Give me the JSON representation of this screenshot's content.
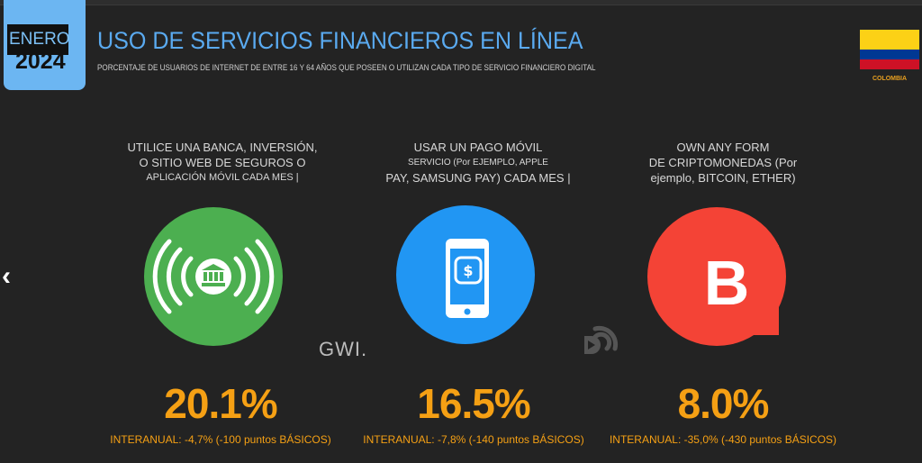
{
  "header": {
    "month": "ENERO",
    "year": "2024",
    "title": "USO DE SERVICIOS FINANCIEROS EN LÍNEA",
    "subtitle": "PORCENTAJE DE USUARIOS DE INTERNET DE ENTRE 16 Y 64 AÑOS QUE POSEEN O UTILIZAN CADA TIPO DE SERVICIO FINANCIERO DIGITAL",
    "country": "COLOMBIA",
    "flag_colors": [
      "#fcd116",
      "#003893",
      "#ce1126"
    ]
  },
  "nav": {
    "prev_icon": "chevron-left-icon"
  },
  "watermarks": {
    "gwi": "GWI."
  },
  "metrics": [
    {
      "label_lines": [
        "UTILICE UNA BANCA, INVERSIÓN,",
        "O SITIO WEB DE SEGUROS O",
        "APLICACIÓN MÓVIL CADA MES |"
      ],
      "icon": "bank-signal-icon",
      "color": "#4caf50",
      "value": "20.1%",
      "change": "INTERANUAL: -4,7% (-100 puntos BÁSICOS)"
    },
    {
      "label_lines": [
        "USAR UN PAGO MÓVIL",
        "SERVICIO (Por EJEMPLO, APPLE",
        "PAY, SAMSUNG PAY) CADA MES |"
      ],
      "icon": "mobile-payment-icon",
      "color": "#2196f3",
      "value": "16.5%",
      "change": "INTERANUAL: -7,8% (-140 puntos BÁSICOS)"
    },
    {
      "label_lines": [
        "OWN ANY FORM",
        "DE CRIPTOMONEDAS (Por",
        "ejemplo, BITCOIN, ETHER)"
      ],
      "icon": "bitcoin-icon",
      "color": "#f44336",
      "value": "8.0%",
      "change": "INTERANUAL: -35,0% (-430 puntos BÁSICOS)"
    }
  ]
}
